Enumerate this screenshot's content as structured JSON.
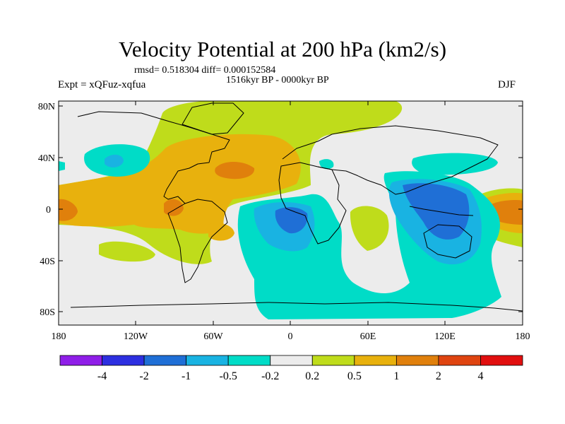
{
  "title": "Velocity Potential at 200 hPa (km2/s)",
  "stats": "rmsd= 0.518304 diff= 0.000152584",
  "period": "1516kyr BP - 0000kyr BP",
  "experiment": "Expt = xQFuz-xqfua",
  "season": "DJF",
  "y_ticks": [
    "80N",
    "40N",
    "0",
    "40S",
    "80S"
  ],
  "x_ticks": [
    "180",
    "120W",
    "60W",
    "0",
    "60E",
    "120E",
    "180"
  ],
  "colorbar": {
    "colors": [
      "#8f1ee8",
      "#2d2fe0",
      "#1f6fd6",
      "#19b3e2",
      "#00dcc7",
      "#ececec",
      "#bfdc1b",
      "#e8b10d",
      "#e0800c",
      "#df4410",
      "#e10f0f"
    ],
    "labels": [
      "-4",
      "-2",
      "-1",
      "-0.5",
      "-0.2",
      "0.2",
      "0.5",
      "1",
      "2",
      "4"
    ]
  },
  "palette": {
    "neutral": "#ececec",
    "pos_02": "#bfdc1b",
    "pos_05": "#e8b10d",
    "pos_1": "#e0800c",
    "neg_02": "#00dcc7",
    "neg_05": "#19b3e2",
    "neg_1": "#1f6fd6"
  }
}
